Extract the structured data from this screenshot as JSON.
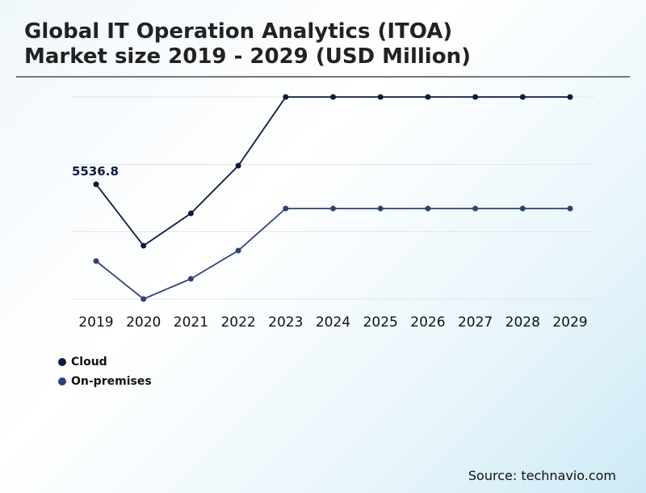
{
  "title_line1": "Global IT Operation Analytics (ITOA)",
  "title_line2": "Market size 2019 - 2029 (USD Million)",
  "source": "Source: technavio.com",
  "chart_data": {
    "type": "line",
    "x": [
      "2019",
      "2020",
      "2021",
      "2022",
      "2023",
      "2024",
      "2025",
      "2026",
      "2027",
      "2028",
      "2029"
    ],
    "series": [
      {
        "name": "Cloud",
        "color": "#0d1b3e",
        "values": [
          5536.8,
          2573,
          4133,
          6434,
          9748,
          9748,
          9748,
          9748,
          9748,
          9748,
          9748
        ]
      },
      {
        "name": "On-premises",
        "color": "#2e4374",
        "values": [
          1833,
          0,
          975,
          2339,
          4367,
          4367,
          4367,
          4367,
          4367,
          4367,
          4367
        ]
      }
    ],
    "annotations": [
      {
        "series": "Cloud",
        "x": "2019",
        "text": "5536.8"
      }
    ],
    "ylim": [
      0,
      9748
    ],
    "grid": true,
    "y_axis_labels_shown": false,
    "legend": "bottom-left"
  }
}
